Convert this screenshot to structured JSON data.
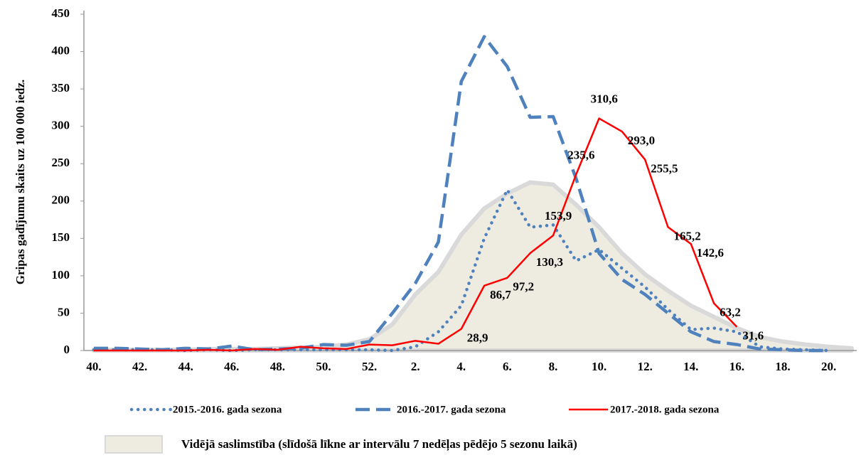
{
  "chart_data": {
    "type": "line",
    "y_label": "Gripas gadījumu skaits uz 100 000 iedz.",
    "categories": [
      "40.",
      null,
      "42.",
      null,
      "44.",
      null,
      "46.",
      null,
      "48.",
      null,
      "50.",
      null,
      "52.",
      null,
      "2.",
      null,
      "4.",
      null,
      "6.",
      null,
      "8.",
      null,
      "10.",
      null,
      "12.",
      null,
      "14.",
      null,
      "16.",
      null,
      "18.",
      null,
      "20.",
      null
    ],
    "ylim": [
      0,
      450
    ],
    "yticks": [
      0,
      50,
      100,
      150,
      200,
      250,
      300,
      350,
      400,
      450
    ],
    "series": [
      {
        "name": "Vidējā saslimstība (slīdošā līkne ar intervālu 7 nedēļas pēdējo 5 sezonu laikā)",
        "style": "area",
        "color": "#eeece1",
        "values": [
          1,
          1,
          1,
          1,
          1,
          2,
          2,
          2,
          3,
          4,
          5,
          8,
          15,
          35,
          75,
          105,
          155,
          190,
          210,
          225,
          222,
          195,
          165,
          130,
          102,
          80,
          60,
          45,
          30,
          18,
          12,
          8,
          5,
          3
        ]
      },
      {
        "name": "2015.-2016. gada sezona",
        "style": "dotted",
        "color": "#4f81bd",
        "values": [
          1,
          1,
          1,
          1,
          0,
          1,
          0,
          1,
          1,
          1,
          1,
          1,
          1,
          0,
          5,
          25,
          60,
          150,
          215,
          165,
          168,
          120,
          135,
          110,
          85,
          55,
          28,
          30,
          25,
          5,
          2,
          1,
          0,
          null
        ]
      },
      {
        "name": "2016.-2017. gada sezona",
        "style": "dashed",
        "color": "#4f81bd",
        "values": [
          3,
          3,
          2,
          1,
          3,
          2,
          6,
          1,
          2,
          3,
          8,
          7,
          12,
          50,
          90,
          145,
          360,
          420,
          380,
          312,
          313,
          230,
          130,
          95,
          75,
          50,
          25,
          12,
          8,
          2,
          1,
          0,
          0,
          null
        ]
      },
      {
        "name": "2017.-2018. gada sezona",
        "style": "solid",
        "color": "#ff0000",
        "values": [
          0,
          0,
          0,
          0,
          0,
          1,
          0,
          2,
          1,
          5,
          3,
          2,
          8,
          7,
          13,
          9,
          28.9,
          86.7,
          97.2,
          130.3,
          153.9,
          235.6,
          310.6,
          293.0,
          255.5,
          165.2,
          142.6,
          63.2,
          31.6,
          null,
          null,
          null,
          null,
          null
        ],
        "value_labels": [
          null,
          null,
          null,
          null,
          null,
          null,
          null,
          null,
          null,
          null,
          null,
          null,
          null,
          null,
          null,
          null,
          "28,9",
          "86,7",
          "97,2",
          "130,3",
          "153,9",
          "235,6",
          "310,6",
          "293,0",
          "255,5",
          "165,2",
          "142,6",
          "63,2",
          "31,6",
          null,
          null,
          null,
          null,
          null
        ]
      }
    ]
  }
}
